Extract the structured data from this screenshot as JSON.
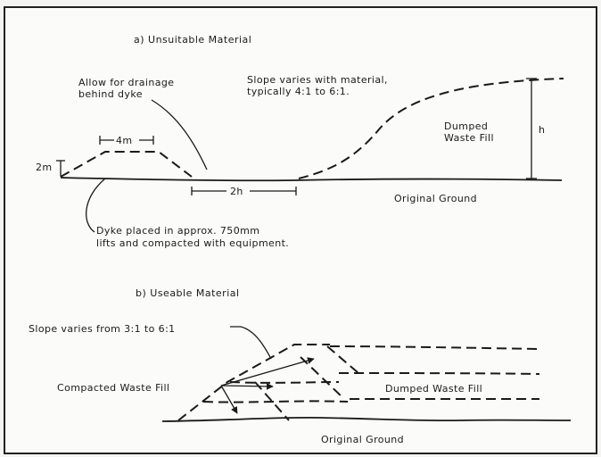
{
  "panel_a": {
    "heading": "a)  Unsuitable Material",
    "drainage_line1": "Allow for drainage",
    "drainage_line2": "behind dyke",
    "slope_line1": "Slope varies with material,",
    "slope_line2": "typically 4:1 to 6:1.",
    "top_width": "4m",
    "dyke_height": "2m",
    "spacing": "2h",
    "fill_height": "h",
    "dumped_line1": "Dumped",
    "dumped_line2": "Waste Fill",
    "ground": "Original Ground",
    "dyke_line1": "Dyke placed in approx. 750mm",
    "dyke_line2": "lifts and compacted with equipment."
  },
  "panel_b": {
    "heading": "b)  Useable Material",
    "slope": "Slope varies from 3:1 to 6:1",
    "compacted": "Compacted Waste Fill",
    "dumped": "Dumped Waste Fill",
    "ground": "Original Ground"
  }
}
